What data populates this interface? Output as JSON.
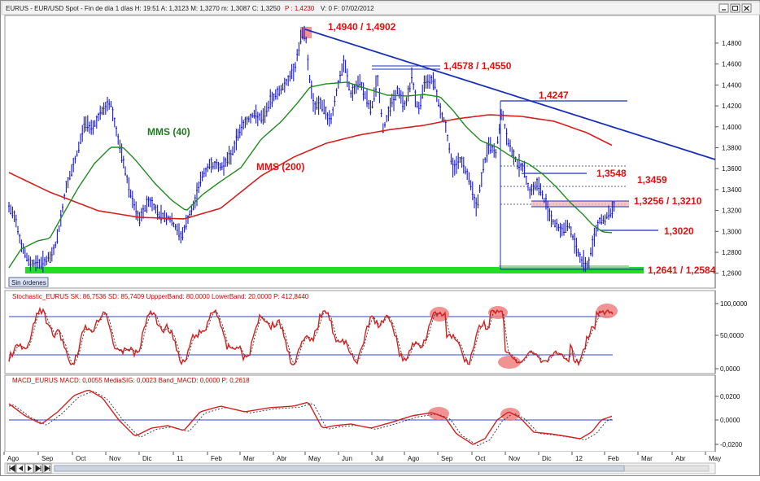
{
  "window": {
    "title": "EURUS - EUR/USD Spot - Fin de día 1 días  H: 19:51  A: 1,3123  M: 1,3270  m: 1,3087  C: 1,3250",
    "p_label": "P : 1,4230",
    "tail": "V: 0  F: 07/02/2012",
    "buttons": [
      "minimize",
      "maximize",
      "close"
    ]
  },
  "price_panel": {
    "y_ticks": [
      "1,4800",
      "1,4600",
      "1,4400",
      "1,4200",
      "1,4000",
      "1,3800",
      "1,3600",
      "1,3400",
      "1,3200",
      "1,3000",
      "1,2800",
      "1,2600"
    ],
    "labels": {
      "mms40": "MMS (40)",
      "mms200": "MMS (200)",
      "r1": "1,4940 / 1,4902",
      "r2": "1,4578 / 1,4550",
      "r3": "1,4247",
      "r4": "1,3548",
      "r5": "1,3459",
      "r6": "1,3256 / 1,3210",
      "r7": "1,3020",
      "r8": "1,2641 / 1,2584"
    },
    "status_button": "Sin órdenes"
  },
  "stoch_panel": {
    "header": "Stochastic_EURUS  SK: 86,7536  SD: 85,7409  UppperBand: 80,0000  LowerBand: 20,0000  P: 412,8440",
    "y_ticks": [
      "100,0000",
      "50,0000",
      "0,0000"
    ]
  },
  "macd_panel": {
    "header": "MACD_EURUS  MACD: 0,0055  MediaSIG: 0,0023  Band_MACD: 0,0000  P: 0,2618",
    "y_ticks": [
      "0,0200",
      "0,0000",
      "-0,0200"
    ]
  },
  "x_axis": {
    "labels": [
      "Ago",
      "Sep",
      "Oct",
      "Nov",
      "Dic",
      "11",
      "Feb",
      "Mar",
      "Abr",
      "May",
      "Jun",
      "Jul",
      "Ago",
      "Sep",
      "Oct",
      "Nov",
      "Dic",
      "12",
      "Feb",
      "Mar",
      "Abr",
      "May"
    ]
  },
  "nav": {
    "buttons": [
      "first",
      "prev",
      "play",
      "next",
      "last"
    ]
  },
  "colors": {
    "price": "#1a1acc",
    "mms40": "#1f8a1f",
    "mms200": "#d42020",
    "trend": "#1a2fb8",
    "label_red": "#e01010",
    "label_green": "#1f7a1f",
    "support_zone": "#22dd22",
    "highlight": "#f08080"
  },
  "chart_data": {
    "type": "line",
    "title": "",
    "series": [
      {
        "name": "MMS (40)",
        "values": []
      },
      {
        "name": "MMS (200)",
        "values": []
      }
    ],
    "levels": [
      1.494,
      1.4902,
      1.4578,
      1.455,
      1.4247,
      1.3548,
      1.3459,
      1.3256,
      1.321,
      1.302,
      1.2641,
      1.2584
    ],
    "ylim": [
      1.255,
      1.495
    ]
  }
}
